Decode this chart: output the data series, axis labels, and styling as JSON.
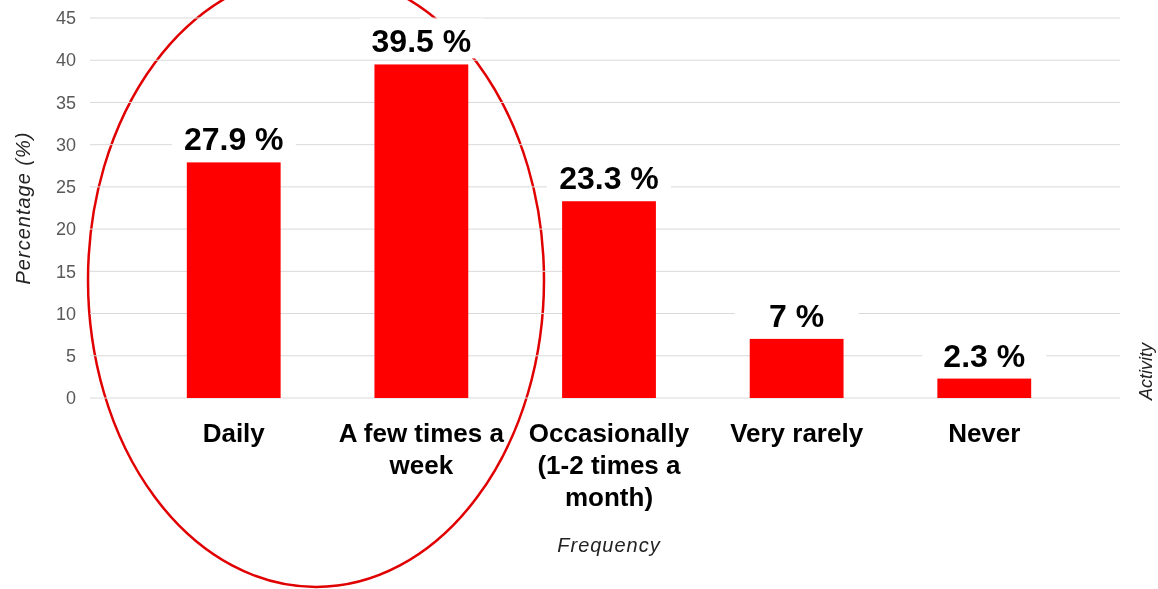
{
  "chart_data": {
    "type": "bar",
    "xlabel": "Frequency",
    "ylabel": "Percentage (%)",
    "categories": [
      "Daily",
      "A few times a week",
      "Occasionally (1-2 times a month)",
      "Very rarely",
      "Never"
    ],
    "values": [
      27.9,
      39.5,
      23.3,
      7,
      2.3
    ],
    "value_labels": [
      "27.9 %",
      "39.5 %",
      "23.3 %",
      "7 %",
      "2.3 %"
    ],
    "color": "#ff0000",
    "ylim": [
      0,
      45
    ],
    "yticks": [
      0,
      5,
      10,
      15,
      20,
      25,
      30,
      35,
      40,
      45
    ],
    "grid": "y",
    "annotations": [
      "Activity"
    ]
  }
}
